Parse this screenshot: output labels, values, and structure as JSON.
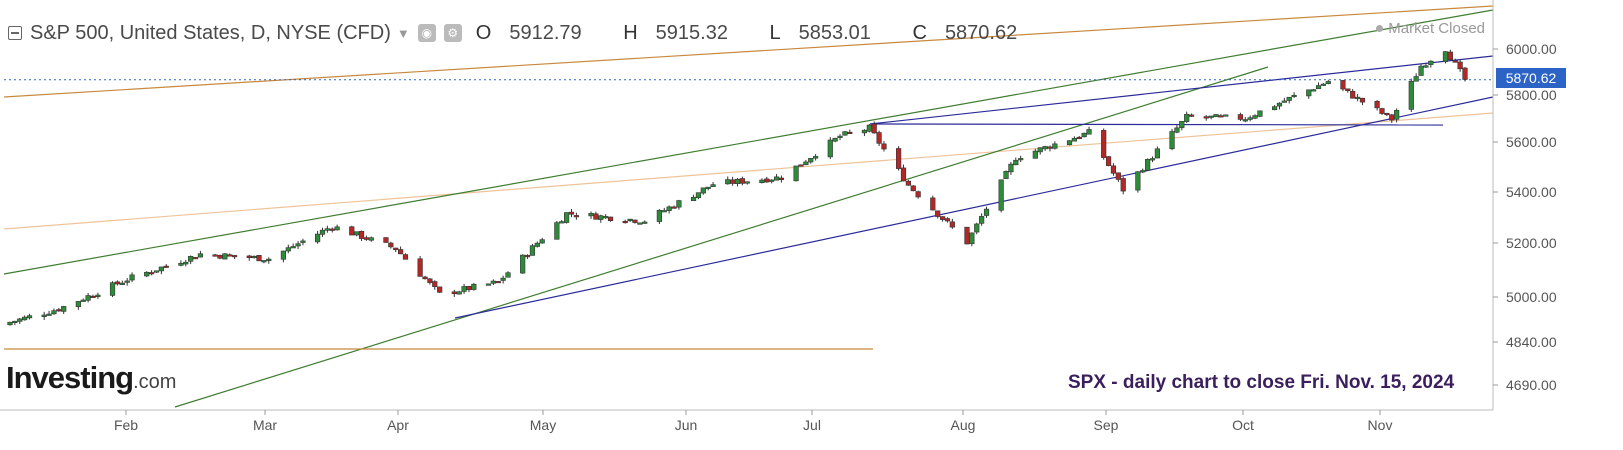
{
  "header": {
    "symbol_title": "S&P 500, United States, D, NYSE (CFD)",
    "open_label": "O",
    "open_value": "5912.79",
    "high_label": "H",
    "high_value": "5915.32",
    "low_label": "L",
    "low_value": "5853.01",
    "close_label": "C",
    "close_value": "5870.62"
  },
  "status": {
    "market_closed": "Market Closed"
  },
  "logo": {
    "mark": "Investing",
    "domain": ".com"
  },
  "caption": "SPX - daily chart to close Fri. Nov. 15, 2024",
  "last_price_label": "5870.62",
  "colors": {
    "up": "#2e8b3a",
    "down": "#b32727",
    "upper_trend": "#c8893e",
    "lower_trend": "#eec39a",
    "channel_green": "#3f7d30",
    "channel_blue": "#2b2b9a",
    "last_price_line": "#2b63c6",
    "caption": "#3a1f5c"
  },
  "chart_data": {
    "type": "candlestick",
    "y_tick_labels": [
      "6000.00",
      "5800.00",
      "5600.00",
      "5400.00",
      "5200.00",
      "5000.00",
      "4840.00",
      "4690.00"
    ],
    "x_tick_labels": [
      "Feb",
      "Mar",
      "Apr",
      "May",
      "Jun",
      "Jul",
      "Aug",
      "Sep",
      "Oct",
      "Nov"
    ],
    "last_close": 5870.62,
    "series": [
      {
        "date": "2024-01-22",
        "close": 4850
      },
      {
        "date": "2024-02-01",
        "close": 4906
      },
      {
        "date": "2024-02-15",
        "close": 5030
      },
      {
        "date": "2024-03-01",
        "close": 5137
      },
      {
        "date": "2024-03-15",
        "close": 5117
      },
      {
        "date": "2024-03-28",
        "close": 5254
      },
      {
        "date": "2024-04-10",
        "close": 5160
      },
      {
        "date": "2024-04-19",
        "close": 4967
      },
      {
        "date": "2024-05-01",
        "close": 5018
      },
      {
        "date": "2024-05-15",
        "close": 5308
      },
      {
        "date": "2024-05-31",
        "close": 5277
      },
      {
        "date": "2024-06-14",
        "close": 5431
      },
      {
        "date": "2024-06-28",
        "close": 5460
      },
      {
        "date": "2024-07-10",
        "close": 5633
      },
      {
        "date": "2024-07-16",
        "close": 5667
      },
      {
        "date": "2024-07-24",
        "close": 5427
      },
      {
        "date": "2024-08-05",
        "close": 5186
      },
      {
        "date": "2024-08-15",
        "close": 5543
      },
      {
        "date": "2024-08-30",
        "close": 5648
      },
      {
        "date": "2024-09-06",
        "close": 5408
      },
      {
        "date": "2024-09-19",
        "close": 5713
      },
      {
        "date": "2024-10-01",
        "close": 5709
      },
      {
        "date": "2024-10-18",
        "close": 5864
      },
      {
        "date": "2024-10-31",
        "close": 5705
      },
      {
        "date": "2024-11-06",
        "close": 5929
      },
      {
        "date": "2024-11-11",
        "close": 6001
      },
      {
        "date": "2024-11-15",
        "close": 5870.62
      }
    ]
  }
}
